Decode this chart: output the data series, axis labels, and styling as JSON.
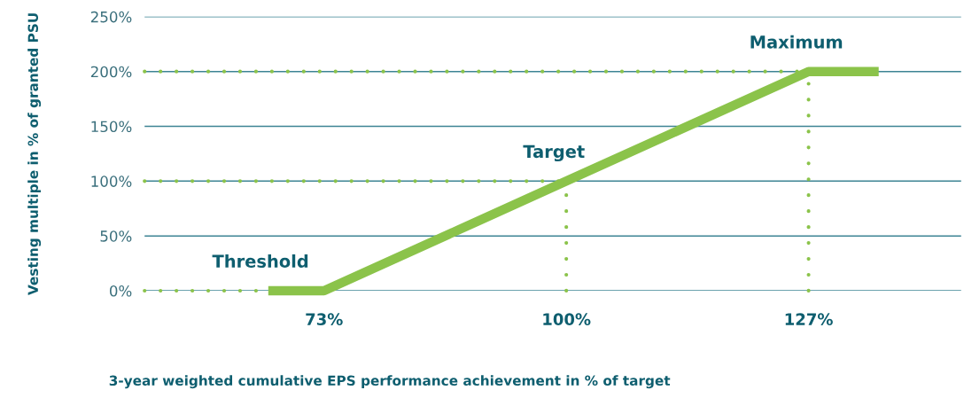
{
  "chart_data": {
    "type": "line",
    "xlabel": "3-year weighted cumulative EPS performance achievement in % of target",
    "ylabel": "Vesting multiple in % of granted PSU",
    "xlim": [
      53,
      144
    ],
    "xticks": [
      {
        "value": 73,
        "label": "73%"
      },
      {
        "value": 100,
        "label": "100%"
      },
      {
        "value": 127,
        "label": "127%"
      }
    ],
    "ylim": [
      0,
      250
    ],
    "yticks": [
      {
        "value": 0,
        "label": "0%"
      },
      {
        "value": 50,
        "label": "50%"
      },
      {
        "value": 100,
        "label": "100%"
      },
      {
        "value": 150,
        "label": "150%"
      },
      {
        "value": 200,
        "label": "200%"
      },
      {
        "value": 250,
        "label": "250%"
      }
    ],
    "grid": "y",
    "series": [
      {
        "color": "#8bc34a",
        "x": [
          67.3,
          73,
          100,
          127,
          134.3
        ],
        "values": [
          0,
          0,
          100,
          200,
          200
        ],
        "line_style": "solid"
      },
      {
        "color": "#8bc34a",
        "x": [
          53,
          67.3
        ],
        "values": [
          0,
          0
        ],
        "line_style": "dotted"
      },
      {
        "color": "#8bc34a",
        "x": [
          53,
          100
        ],
        "values": [
          100,
          100
        ],
        "line_style": "dotted"
      },
      {
        "color": "#8bc34a",
        "x": [
          53,
          127
        ],
        "values": [
          200,
          200
        ],
        "line_style": "dotted"
      },
      {
        "color": "#8bc34a",
        "x": [
          100,
          100
        ],
        "values": [
          0,
          100
        ],
        "line_style": "dotted"
      },
      {
        "color": "#8bc34a",
        "x": [
          127,
          127
        ],
        "values": [
          0,
          200
        ],
        "line_style": "dotted"
      }
    ],
    "annotations": [
      {
        "text": "Threshold",
        "x": 67.3,
        "y": 0
      },
      {
        "text": "Target",
        "x": 100,
        "y": 100
      },
      {
        "text": "Maximum",
        "x": 127,
        "y": 200
      }
    ]
  }
}
